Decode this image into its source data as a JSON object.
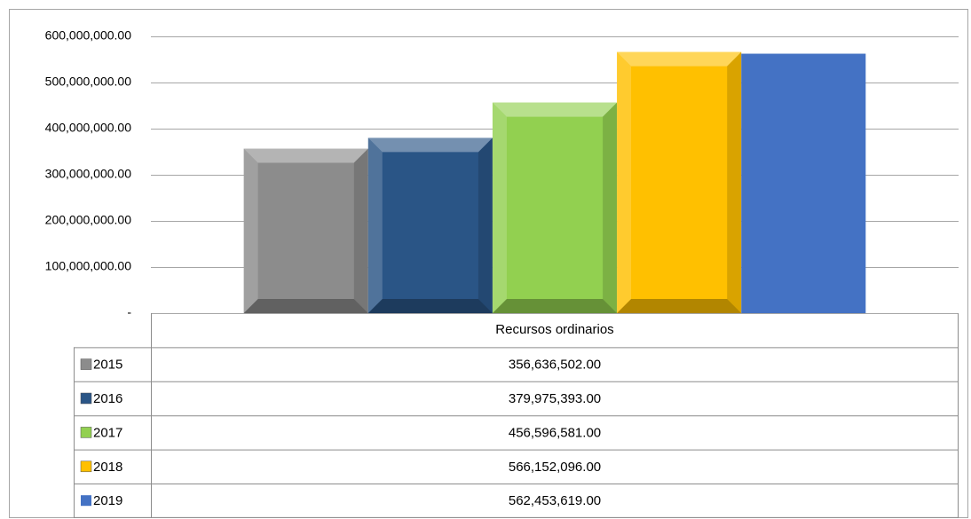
{
  "chart_data": {
    "type": "bar",
    "categories": [
      "Recursos ordinarios"
    ],
    "series": [
      {
        "name": "2015",
        "color": "#8c8c8c",
        "effect": "bevel",
        "values": [
          356636502
        ],
        "value_labels": [
          "356,636,502.00"
        ]
      },
      {
        "name": "2016",
        "color": "#2a5586",
        "effect": "bevel",
        "values": [
          379975393
        ],
        "value_labels": [
          "379,975,393.00"
        ]
      },
      {
        "name": "2017",
        "color": "#92d050",
        "effect": "bevel",
        "values": [
          456596581
        ],
        "value_labels": [
          "456,596,581.00"
        ]
      },
      {
        "name": "2018",
        "color": "#ffc000",
        "effect": "bevel",
        "values": [
          566152096
        ],
        "value_labels": [
          "566,152,096.00"
        ]
      },
      {
        "name": "2019",
        "color": "#4472c4",
        "values": [
          562453619
        ],
        "value_labels": [
          "562,453,619.00"
        ]
      }
    ],
    "ylim": [
      0,
      600000000
    ],
    "yticks": [
      {
        "value": 0,
        "label": "-"
      },
      {
        "value": 100000000,
        "label": "100,000,000.00"
      },
      {
        "value": 200000000,
        "label": "200,000,000.00"
      },
      {
        "value": 300000000,
        "label": "300,000,000.00"
      },
      {
        "value": 400000000,
        "label": "400,000,000.00"
      },
      {
        "value": 500000000,
        "label": "500,000,000.00"
      },
      {
        "value": 600000000,
        "label": "600,000,000.00"
      }
    ],
    "grid": true
  }
}
